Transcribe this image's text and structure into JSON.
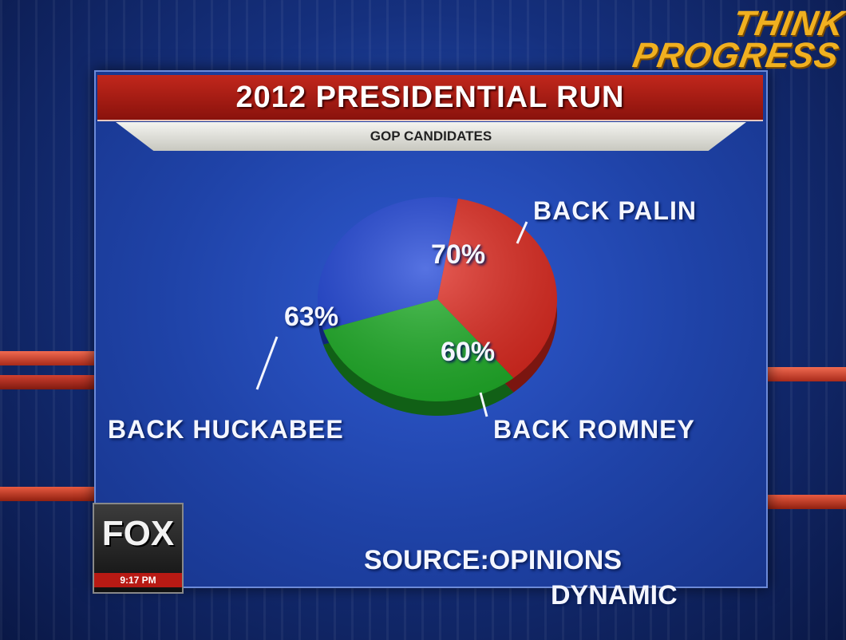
{
  "header": {
    "title": "2012 PRESIDENTIAL RUN",
    "subtitle": "GOP CANDIDATES"
  },
  "watermark": {
    "line1": "THINK",
    "line2": "PROGRESS",
    "color": "#f0b020"
  },
  "network": {
    "logo": "FOX",
    "time": "9:17 PM"
  },
  "source": {
    "line1": "SOURCE:OPINIONS",
    "line2": "DYNAMIC"
  },
  "chart_data": {
    "type": "pie",
    "title": "2012 PRESIDENTIAL RUN",
    "subtitle": "GOP CANDIDATES",
    "categories": [
      "BACK PALIN",
      "BACK ROMNEY",
      "BACK HUCKABEE"
    ],
    "values": [
      70,
      60,
      63
    ],
    "value_labels": [
      "70%",
      "60%",
      "63%"
    ],
    "colors": [
      "#e0281e",
      "#1fb028",
      "#1e44d8"
    ],
    "source": "SOURCE:OPINIONS DYNAMIC"
  }
}
